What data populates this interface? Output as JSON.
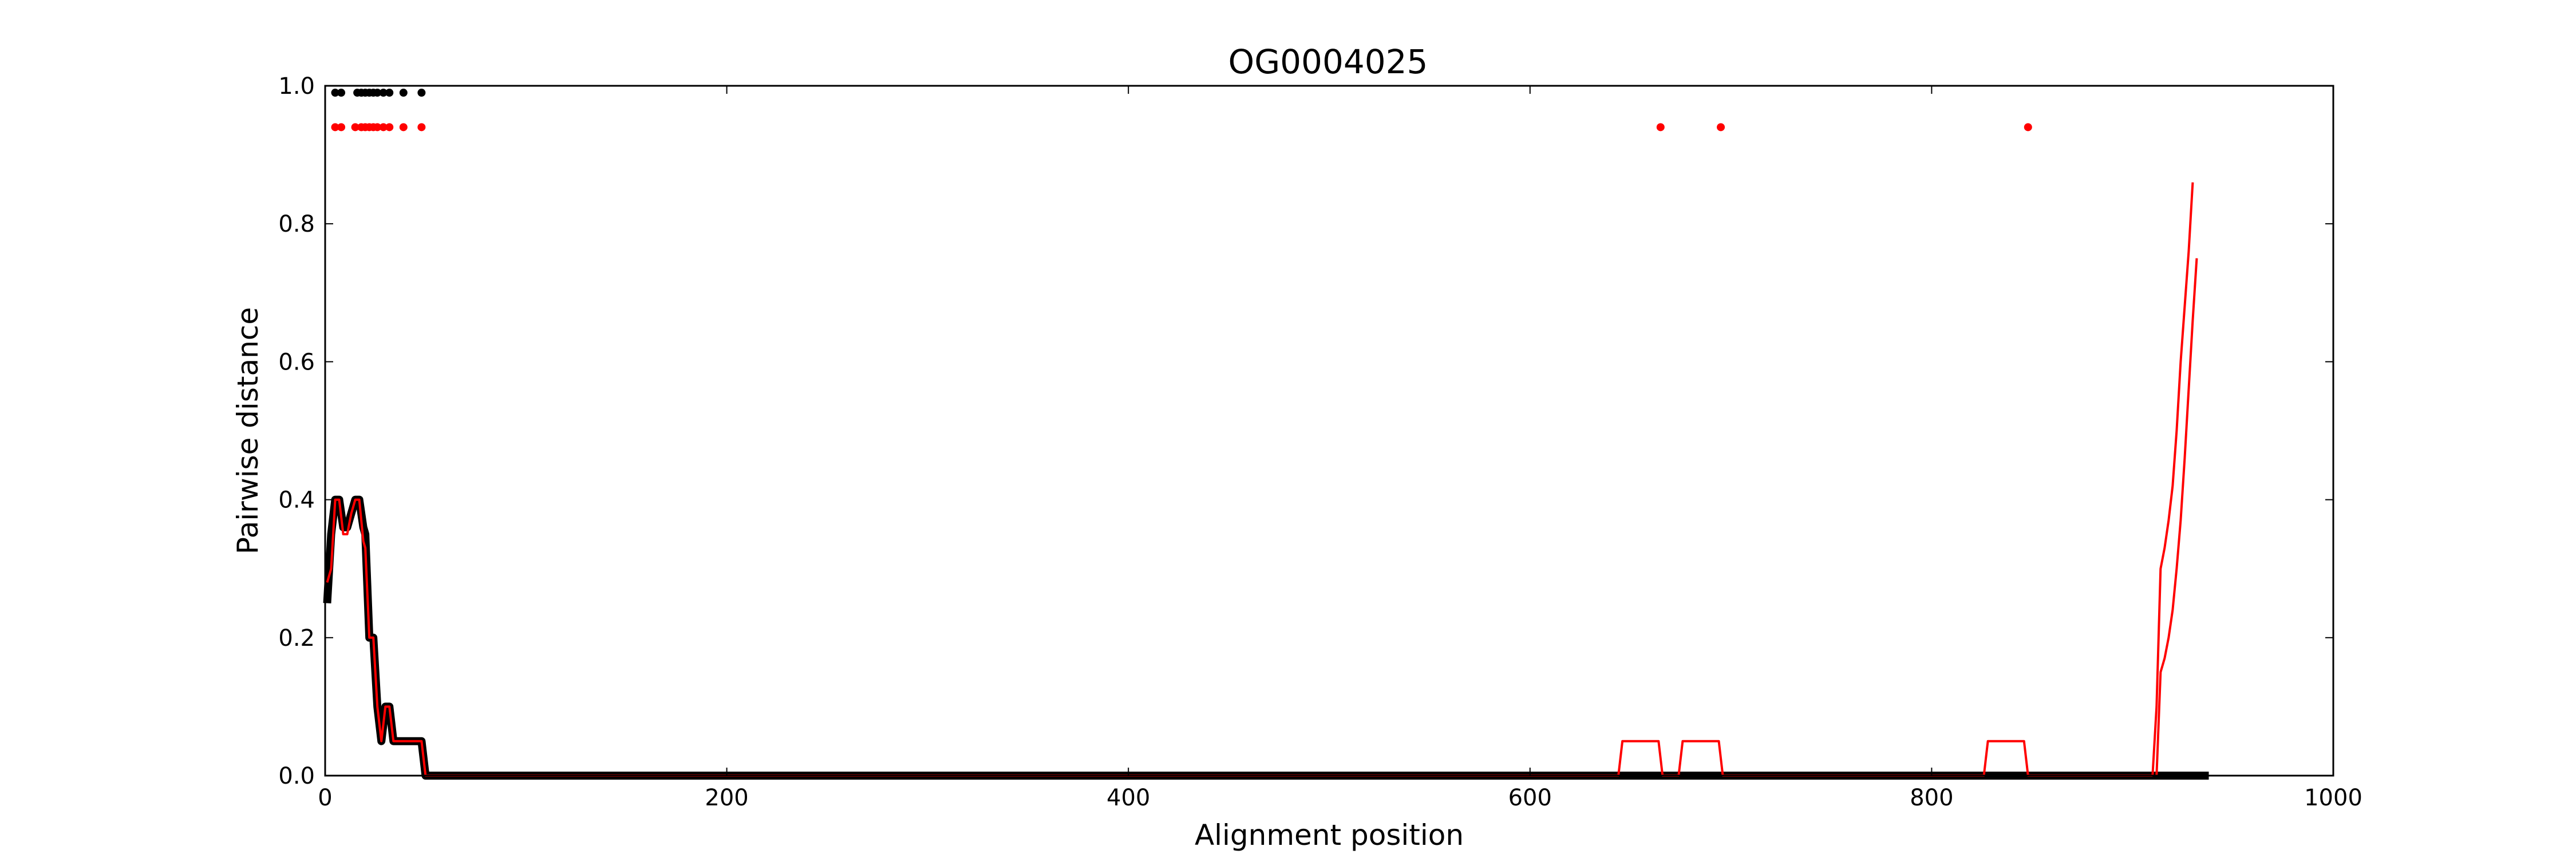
{
  "chart_data": {
    "type": "line",
    "title": "OG0004025",
    "xlabel": "Alignment position",
    "ylabel": "Pairwise distance",
    "xlim": [
      0,
      1000
    ],
    "ylim": [
      0,
      1.0
    ],
    "xticks": [
      0,
      200,
      400,
      600,
      800,
      1000
    ],
    "yticks": [
      0.0,
      0.2,
      0.4,
      0.6,
      0.8,
      1.0
    ],
    "xtick_labels": [
      "0",
      "200",
      "400",
      "600",
      "800",
      "1000"
    ],
    "ytick_labels": [
      "0.0",
      "0.2",
      "0.4",
      "0.6",
      "0.8",
      "1.0"
    ],
    "grid": false,
    "colors": {
      "black": "#000000",
      "red": "#ff0000"
    },
    "series": [
      {
        "color": "#000000",
        "style": "thick-line",
        "x": [
          1,
          3,
          5,
          7,
          9,
          11,
          13,
          15,
          17,
          19,
          20,
          22,
          24,
          26,
          28,
          30,
          32,
          34,
          36,
          40,
          44,
          48,
          50,
          100,
          300,
          500,
          700,
          900,
          938
        ],
        "y": [
          0.25,
          0.35,
          0.4,
          0.4,
          0.36,
          0.36,
          0.38,
          0.4,
          0.4,
          0.36,
          0.35,
          0.2,
          0.2,
          0.1,
          0.05,
          0.1,
          0.1,
          0.05,
          0.05,
          0.05,
          0.05,
          0.05,
          0.0,
          0.0,
          0.0,
          0.0,
          0.0,
          0.0,
          0.0
        ]
      },
      {
        "color": "#ff0000",
        "style": "thin-line",
        "x": [
          1,
          3,
          5,
          7,
          9,
          11,
          13,
          15,
          17,
          19,
          20,
          22,
          24,
          26,
          28,
          30,
          32,
          34,
          36,
          40,
          44,
          48,
          50,
          100,
          300,
          500,
          644,
          646,
          664,
          666,
          674,
          676,
          694,
          696,
          826,
          828,
          846,
          848,
          910
        ],
        "y": [
          0.28,
          0.3,
          0.4,
          0.4,
          0.35,
          0.35,
          0.38,
          0.4,
          0.4,
          0.34,
          0.33,
          0.2,
          0.2,
          0.1,
          0.05,
          0.1,
          0.1,
          0.05,
          0.05,
          0.05,
          0.05,
          0.05,
          0.0,
          0.0,
          0.0,
          0.0,
          0.0,
          0.05,
          0.05,
          0.0,
          0.0,
          0.05,
          0.05,
          0.0,
          0.0,
          0.05,
          0.05,
          0.0,
          0.0
        ]
      },
      {
        "color": "#ff0000",
        "style": "thin-line",
        "x": [
          910,
          912,
          914,
          916,
          918,
          920,
          922,
          924,
          926,
          928,
          930
        ],
        "y": [
          0.0,
          0.1,
          0.3,
          0.33,
          0.37,
          0.42,
          0.5,
          0.6,
          0.68,
          0.76,
          0.86
        ]
      },
      {
        "color": "#ff0000",
        "style": "thin-line",
        "x": [
          912,
          914,
          916,
          918,
          920,
          922,
          924,
          926,
          928,
          930,
          932
        ],
        "y": [
          0.0,
          0.15,
          0.17,
          0.2,
          0.24,
          0.3,
          0.37,
          0.46,
          0.56,
          0.66,
          0.75
        ]
      },
      {
        "color": "#000000",
        "style": "dots",
        "x": [
          5,
          8,
          16,
          18,
          20,
          22,
          24,
          26,
          29,
          32,
          39,
          48
        ],
        "y": [
          0.99,
          0.99,
          0.99,
          0.99,
          0.99,
          0.99,
          0.99,
          0.99,
          0.99,
          0.99,
          0.99,
          0.99
        ]
      },
      {
        "color": "#ff0000",
        "style": "dots",
        "x": [
          5,
          8,
          15,
          18,
          20,
          22,
          24,
          26,
          29,
          32,
          39,
          48,
          665,
          695,
          848
        ],
        "y": [
          0.94,
          0.94,
          0.94,
          0.94,
          0.94,
          0.94,
          0.94,
          0.94,
          0.94,
          0.94,
          0.94,
          0.94,
          0.94,
          0.94,
          0.94
        ]
      }
    ]
  }
}
